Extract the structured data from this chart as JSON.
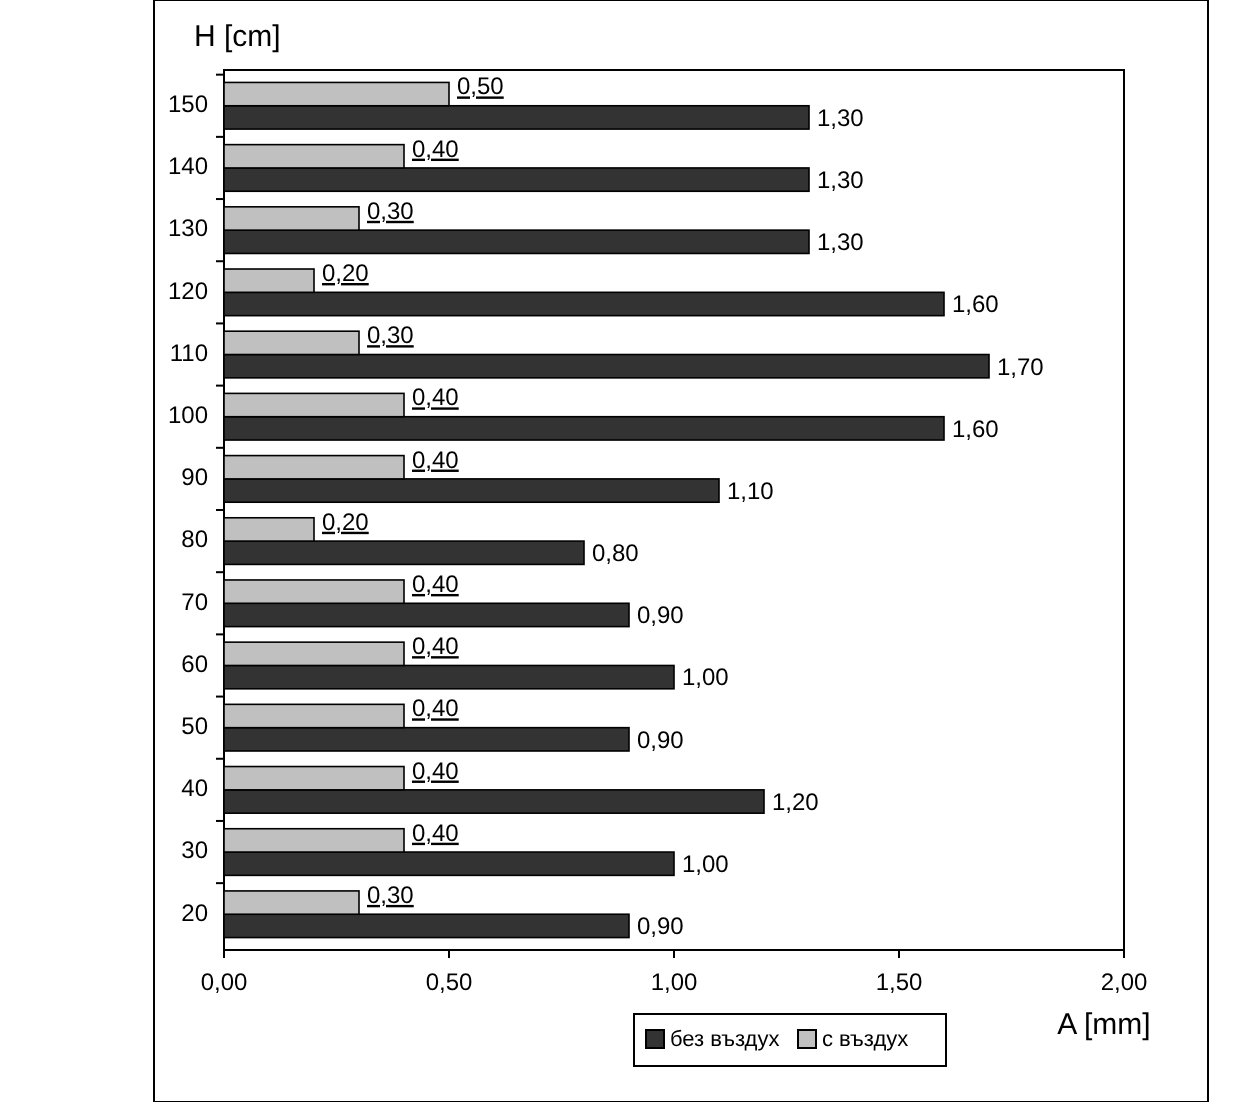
{
  "chart_data": {
    "type": "bar",
    "orientation": "horizontal",
    "ylabel": "H [cm]",
    "xlabel": "A [mm]",
    "categories": [
      "150",
      "140",
      "130",
      "120",
      "110",
      "100",
      "90",
      "80",
      "70",
      "60",
      "50",
      "40",
      "30",
      "20"
    ],
    "series": [
      {
        "name": "без въздух",
        "color": "#333333",
        "values": [
          1.3,
          1.3,
          1.3,
          1.6,
          1.7,
          1.6,
          1.1,
          0.8,
          0.9,
          1.0,
          0.9,
          1.2,
          1.0,
          0.9
        ],
        "value_labels": [
          "1,30",
          "1,30",
          "1,30",
          "1,60",
          "1,70",
          "1,60",
          "1,10",
          "0,80",
          "0,90",
          "1,00",
          "0,90",
          "1,20",
          "1,00",
          "0,90"
        ]
      },
      {
        "name": "с въздух",
        "color": "#c0c0c0",
        "values": [
          0.5,
          0.4,
          0.3,
          0.2,
          0.3,
          0.4,
          0.4,
          0.2,
          0.4,
          0.4,
          0.4,
          0.4,
          0.4,
          0.3
        ],
        "value_labels": [
          "0,50",
          "0,40",
          "0,30",
          "0,20",
          "0,30",
          "0,40",
          "0,40",
          "0,20",
          "0,40",
          "0,40",
          "0,40",
          "0,40",
          "0,40",
          "0,30"
        ]
      }
    ],
    "xlim": [
      0,
      2
    ],
    "xticks": [
      {
        "value": 0,
        "label": "0,00"
      },
      {
        "value": 0.5,
        "label": "0,50"
      },
      {
        "value": 1,
        "label": "1,00"
      },
      {
        "value": 1.5,
        "label": "1,50"
      },
      {
        "value": 2,
        "label": "2,00"
      }
    ],
    "grid": false,
    "legend": "bottom"
  }
}
